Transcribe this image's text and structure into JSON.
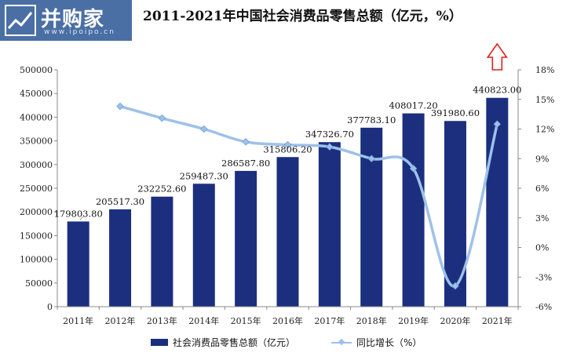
{
  "brand": {
    "name": "并购家",
    "url": "www.ipoipo.cn"
  },
  "chart_data": {
    "type": "bar",
    "title": "2011-2021年中国社会消费品零售总额（亿元，%）",
    "categories": [
      "2011年",
      "2012年",
      "2013年",
      "2014年",
      "2015年",
      "2016年",
      "2017年",
      "2018年",
      "2019年",
      "2020年",
      "2021年"
    ],
    "series": [
      {
        "name": "社会消费品零售总额（亿元）",
        "type": "bar",
        "axis": "left",
        "color": "#1b2f7e",
        "values": [
          179803.8,
          205517.3,
          232252.6,
          259487.3,
          286587.8,
          315806.2,
          347326.7,
          377783.1,
          408017.2,
          391980.6,
          440823.0
        ],
        "labels": [
          "179803.80",
          "205517.30",
          "232252.60",
          "259487.30",
          "286587.80",
          "315806.20",
          "347326.70",
          "377783.10",
          "408017.20",
          "391980.60",
          "440823.00"
        ]
      },
      {
        "name": "同比增长（%）",
        "type": "line",
        "axis": "right",
        "color": "#9ec1ea",
        "values": [
          null,
          14.3,
          13.1,
          12.0,
          10.7,
          10.4,
          10.2,
          9.0,
          8.0,
          -3.9,
          12.5
        ]
      }
    ],
    "y_left": {
      "min": 0,
      "max": 500000,
      "step": 50000,
      "ticks": [
        "0",
        "50000",
        "100000",
        "150000",
        "200000",
        "250000",
        "300000",
        "350000",
        "400000",
        "450000",
        "500000"
      ]
    },
    "y_right": {
      "min": -6,
      "max": 18,
      "step": 3,
      "ticks": [
        "-6%",
        "-3%",
        "0%",
        "3%",
        "6%",
        "9%",
        "12%",
        "15%",
        "18%"
      ]
    },
    "grid": false,
    "legend": "bottom",
    "annotation": "up-arrow-above-2021"
  }
}
